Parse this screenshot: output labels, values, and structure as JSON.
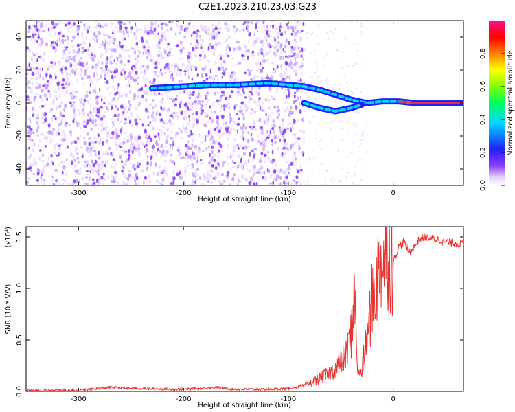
{
  "title": "C2E1.2023.210.23.03.G23",
  "colors": {
    "snr_line": "#e8322d",
    "spectrogram_dots": "#8a3dff",
    "track_core": "#e8322d"
  },
  "chart_data": [
    {
      "type": "heatmap",
      "xlabel": "Height of straight line (km)",
      "ylabel": "Frequency (Hz)",
      "xlim": [
        -350,
        67
      ],
      "ylim": [
        -50,
        50
      ],
      "xticks": [
        -300,
        -200,
        -100,
        0
      ],
      "yticks": [
        40,
        20,
        0,
        -20,
        -40
      ],
      "colorbar": {
        "label": "Normalized spectral amplitude",
        "range": [
          0,
          1
        ],
        "ticks": [
          "0.0",
          "0.2",
          "0.4",
          "0.6",
          "0.8"
        ],
        "colormap": "rainbow (purple-blue-cyan-green-yellow-red-magenta)"
      },
      "noise_region_x": [
        -350,
        -85
      ],
      "track": [
        {
          "x": -230,
          "y": 9
        },
        {
          "x": -200,
          "y": 10
        },
        {
          "x": -175,
          "y": 11
        },
        {
          "x": -150,
          "y": 11
        },
        {
          "x": -120,
          "y": 12
        },
        {
          "x": -100,
          "y": 11
        },
        {
          "x": -85,
          "y": 10
        },
        {
          "x": -70,
          "y": 8
        },
        {
          "x": -55,
          "y": 5
        },
        {
          "x": -40,
          "y": 2
        },
        {
          "x": -25,
          "y": 0
        },
        {
          "x": -10,
          "y": 1
        },
        {
          "x": 5,
          "y": 1
        },
        {
          "x": 20,
          "y": 0
        },
        {
          "x": 40,
          "y": 0
        },
        {
          "x": 67,
          "y": 0
        }
      ],
      "track_lower": [
        {
          "x": -85,
          "y": 0
        },
        {
          "x": -70,
          "y": -3
        },
        {
          "x": -55,
          "y": -5
        },
        {
          "x": -40,
          "y": -3
        },
        {
          "x": -30,
          "y": -1
        }
      ]
    },
    {
      "type": "line",
      "xlabel": "Height of straight line (km)",
      "ylabel": "SNR (10 * V/V)",
      "yscale_label": "(x10⁴)",
      "xlim": [
        -350,
        67
      ],
      "ylim": [
        0,
        1.6
      ],
      "xticks": [
        -300,
        -200,
        -100,
        0
      ],
      "yticks": [
        "0.0",
        "0.5",
        "1.0",
        "1.5"
      ],
      "series": [
        {
          "x": [
            -350,
            -300,
            -270,
            -250,
            -200,
            -170,
            -150,
            -120,
            -100,
            -85,
            -75,
            -60,
            -50,
            -45,
            -40,
            -37,
            -35,
            -33,
            -30,
            -25,
            -20,
            -15,
            -10,
            -5,
            0,
            5,
            10,
            15,
            20,
            25,
            30,
            40,
            50,
            60,
            67
          ],
          "y": [
            0.01,
            0.01,
            0.04,
            0.03,
            0.02,
            0.04,
            0.02,
            0.02,
            0.03,
            0.05,
            0.1,
            0.18,
            0.28,
            0.35,
            0.55,
            1.05,
            0.4,
            0.15,
            0.2,
            0.5,
            0.9,
            1.1,
            1.3,
            1.35,
            1.25,
            1.4,
            1.45,
            1.35,
            1.4,
            1.48,
            1.5,
            1.48,
            1.45,
            1.44,
            1.43
          ]
        }
      ]
    }
  ]
}
